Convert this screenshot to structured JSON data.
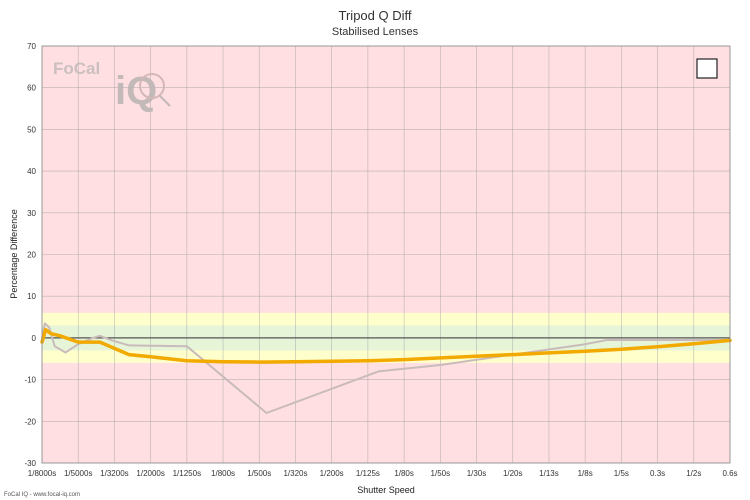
{
  "chart_data": {
    "type": "line",
    "title": "Tripod Q Diff",
    "subtitle": "Stabilised Lenses",
    "xlabel": "Shutter Speed",
    "ylabel": "Percentage Difference",
    "ylim": [
      -30,
      70
    ],
    "yticks": [
      70,
      60,
      50,
      40,
      30,
      20,
      10,
      0,
      -10,
      -20,
      -30
    ],
    "xtick_labels": [
      "1/8000s",
      "1/5000s",
      "1/3200s",
      "1/2000s",
      "1/1250s",
      "1/800s",
      "1/500s",
      "1/320s",
      "1/200s",
      "1/125s",
      "1/80s",
      "1/50s",
      "1/30s",
      "1/20s",
      "1/13s",
      "1/8s",
      "1/5s",
      "0.3s",
      "1/2s",
      "0.6s"
    ],
    "grid": true,
    "bands": [
      {
        "from": -6,
        "to": 6,
        "color": "#ffffcc"
      },
      {
        "from": -3,
        "to": 3,
        "color": "#e6f5d8"
      }
    ],
    "background_color": "#ffdfe1",
    "reference_line": 0,
    "series": [
      {
        "color": "#c9bbbb",
        "width": 2,
        "points": [
          [
            0,
            0
          ],
          [
            0.08,
            3.5
          ],
          [
            0.2,
            2.5
          ],
          [
            0.35,
            -2
          ],
          [
            0.65,
            -3.5
          ],
          [
            1.0,
            -1.5
          ],
          [
            1.4,
            0
          ],
          [
            1.6,
            0.5
          ],
          [
            1.9,
            -0.5
          ],
          [
            2.4,
            -1.8
          ],
          [
            4.0,
            -2
          ],
          [
            6.2,
            -18
          ],
          [
            9.3,
            -8
          ],
          [
            11,
            -6.5
          ],
          [
            13,
            -4
          ],
          [
            15,
            -1.5
          ],
          [
            15.6,
            -0.5
          ],
          [
            19,
            -0.5
          ]
        ]
      },
      {
        "color": "#f2a900",
        "width": 3.5,
        "points": [
          [
            0,
            -1
          ],
          [
            0.1,
            2
          ],
          [
            0.25,
            1
          ],
          [
            0.5,
            0.5
          ],
          [
            1.0,
            -1
          ],
          [
            1.6,
            -1
          ],
          [
            2.4,
            -4
          ],
          [
            3.0,
            -4.5
          ],
          [
            4.0,
            -5.5
          ],
          [
            5.0,
            -5.7
          ],
          [
            6.0,
            -5.8
          ],
          [
            7.0,
            -5.7
          ],
          [
            8.0,
            -5.6
          ],
          [
            9.0,
            -5.5
          ],
          [
            10.0,
            -5.2
          ],
          [
            11.0,
            -4.8
          ],
          [
            12.0,
            -4.4
          ],
          [
            13.0,
            -4.0
          ],
          [
            14.0,
            -3.6
          ],
          [
            15.0,
            -3.2
          ],
          [
            16.0,
            -2.7
          ],
          [
            17.0,
            -2.1
          ],
          [
            18.0,
            -1.4
          ],
          [
            19.0,
            -0.6
          ]
        ]
      }
    ]
  },
  "logo": {
    "brand": "FoCal",
    "mark": "iQ"
  },
  "legend_box": {
    "visible": true
  },
  "footer": {
    "text": "FoCal IQ - www.focal-iq.com"
  }
}
